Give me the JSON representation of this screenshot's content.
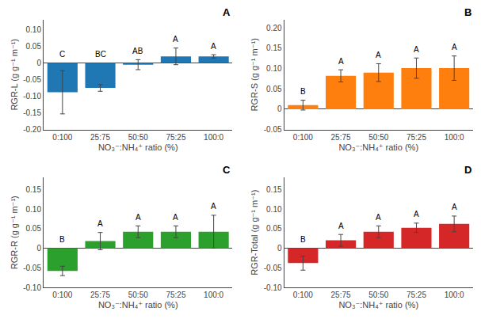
{
  "chart_data": [
    {
      "type": "bar",
      "title": "A",
      "categories": [
        "0:100",
        "25:75",
        "50:50",
        "75:25",
        "100:0"
      ],
      "x_label": "NO₃⁻:NH₄⁺ ratio (%)",
      "y_label": "RGR-L (g g⁻¹ m⁻¹)",
      "values": [
        -0.088,
        -0.075,
        -0.005,
        0.02,
        0.02
      ],
      "errors": [
        0.065,
        0.01,
        0.015,
        0.025,
        0.005
      ],
      "annotations": [
        "C",
        "BC",
        "AB",
        "A",
        "A"
      ],
      "ylim": [
        -0.2,
        0.13
      ],
      "yticks": [
        {
          "value": -0.2,
          "label": "-0.20"
        },
        -0.15,
        {
          "value": -0.1,
          "label": "-0.10"
        },
        -0.05,
        0,
        0.05,
        {
          "value": 0.1,
          "label": "0.10"
        }
      ],
      "grid": false
    },
    {
      "type": "bar",
      "title": "B",
      "categories": [
        "0:100",
        "25:75",
        "50:50",
        "75:25",
        "100:0"
      ],
      "x_label": "NO₃⁻:NH₄⁺ ratio (%)",
      "y_label": "RGR-S (g g⁻¹ m⁻¹)",
      "values": [
        0.01,
        0.082,
        0.09,
        0.101,
        0.101
      ],
      "errors": [
        0.012,
        0.015,
        0.022,
        0.025,
        0.03
      ],
      "annotations": [
        "B",
        "A",
        "A",
        "A",
        "A"
      ],
      "ylim": [
        -0.05,
        0.22
      ],
      "yticks": [
        -0.05,
        0,
        0.05,
        {
          "value": 0.1,
          "label": "0.10"
        },
        0.15,
        {
          "value": 0.2,
          "label": "0.20"
        }
      ],
      "grid": false
    },
    {
      "type": "bar",
      "title": "C",
      "categories": [
        "0:100",
        "25:75",
        "50:50",
        "75:25",
        "100:0"
      ],
      "x_label": "NO₃⁻:NH₄⁺ ratio (%)",
      "y_label": "RGR-R (g g⁻¹ m⁻¹)",
      "values": [
        -0.058,
        0.018,
        0.042,
        0.042,
        0.042
      ],
      "errors": [
        0.012,
        0.022,
        0.015,
        0.015,
        0.042
      ],
      "annotations": [
        "B",
        "A",
        "A",
        "A",
        "A"
      ],
      "ylim": [
        -0.1,
        0.18
      ],
      "yticks": [
        {
          "value": -0.1,
          "label": "-0.10"
        },
        -0.05,
        0,
        0.05,
        {
          "value": 0.1,
          "label": "0.10"
        },
        0.15
      ],
      "grid": false
    },
    {
      "type": "bar",
      "title": "D",
      "categories": [
        "0:100",
        "25:75",
        "50:50",
        "75:25",
        "100:0"
      ],
      "x_label": "NO₃⁻:NH₄⁺ ratio (%)",
      "y_label": "RGR-Total (g g⁻¹ m⁻¹)",
      "values": [
        -0.038,
        0.02,
        0.042,
        0.052,
        0.062
      ],
      "errors": [
        0.018,
        0.015,
        0.015,
        0.012,
        0.02
      ],
      "annotations": [
        "B",
        "A",
        "A",
        "A",
        "A"
      ],
      "ylim": [
        -0.1,
        0.18
      ],
      "yticks": [
        {
          "value": -0.1,
          "label": "-0.10"
        },
        -0.05,
        0,
        0.05,
        {
          "value": 0.1,
          "label": "0.10"
        },
        0.15
      ],
      "grid": false
    }
  ]
}
